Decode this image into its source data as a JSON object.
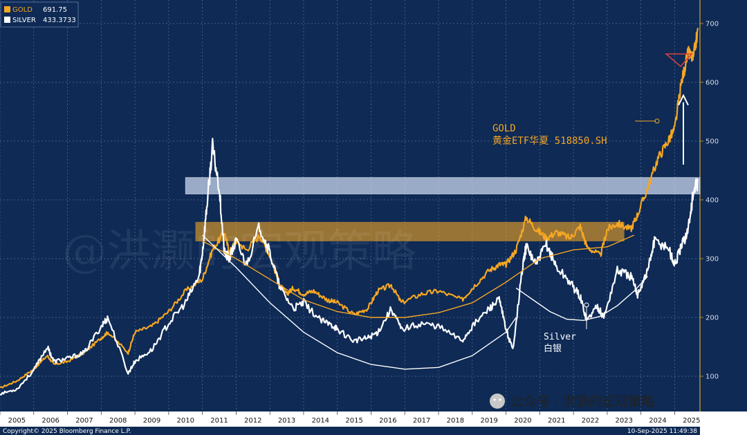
{
  "chart_data": {
    "type": "line",
    "legend": {
      "position": "top-left",
      "entries": [
        {
          "name": "GOLD",
          "value": "691.75",
          "color": "#f5a623"
        },
        {
          "name": "SILVER",
          "value": "433.3733",
          "color": "#ffffff"
        }
      ]
    },
    "x_ticks": [
      "2005",
      "2006",
      "2007",
      "2008",
      "2009",
      "2010",
      "2011",
      "2012",
      "2013",
      "2014",
      "2015",
      "2016",
      "2017",
      "2018",
      "2019",
      "2020",
      "2021",
      "2022",
      "2023",
      "2024",
      "2025"
    ],
    "xlim": [
      2005.0,
      2025.75
    ],
    "y_ticks": [
      100,
      200,
      300,
      400,
      500,
      600,
      700
    ],
    "ylim": [
      40,
      740
    ],
    "grid": true,
    "series": [
      {
        "name": "GOLD",
        "color": "#f5a623",
        "x": [
          2005.0,
          2005.5,
          2006.0,
          2006.4,
          2006.6,
          2007.0,
          2007.5,
          2008.0,
          2008.2,
          2008.8,
          2009.0,
          2009.5,
          2010.0,
          2010.5,
          2011.0,
          2011.3,
          2011.65,
          2011.8,
          2012.0,
          2012.3,
          2012.7,
          2013.0,
          2013.3,
          2013.5,
          2013.7,
          2014.0,
          2014.3,
          2014.7,
          2015.0,
          2015.5,
          2015.9,
          2016.2,
          2016.6,
          2016.9,
          2017.5,
          2018.0,
          2018.7,
          2019.0,
          2019.5,
          2019.8,
          2020.0,
          2020.3,
          2020.6,
          2020.9,
          2021.2,
          2021.5,
          2021.9,
          2022.2,
          2022.4,
          2022.8,
          2023.0,
          2023.3,
          2023.7,
          2023.9,
          2024.2,
          2024.5,
          2024.8,
          2025.0,
          2025.2,
          2025.4,
          2025.55,
          2025.7
        ],
        "y": [
          80,
          92,
          112,
          135,
          120,
          125,
          140,
          165,
          175,
          140,
          175,
          185,
          210,
          245,
          265,
          315,
          345,
          310,
          330,
          315,
          340,
          305,
          255,
          240,
          250,
          240,
          245,
          230,
          225,
          205,
          215,
          245,
          255,
          225,
          240,
          245,
          230,
          250,
          280,
          290,
          290,
          315,
          370,
          350,
          335,
          345,
          335,
          355,
          320,
          305,
          350,
          360,
          350,
          375,
          420,
          470,
          500,
          520,
          600,
          650,
          640,
          692
        ]
      },
      {
        "name": "SILVER",
        "color": "#ffffff",
        "x": [
          2005.0,
          2005.5,
          2006.0,
          2006.4,
          2006.6,
          2007.0,
          2007.5,
          2008.0,
          2008.2,
          2008.8,
          2009.0,
          2009.5,
          2010.0,
          2010.5,
          2010.9,
          2011.0,
          2011.15,
          2011.3,
          2011.5,
          2011.65,
          2011.8,
          2012.0,
          2012.3,
          2012.7,
          2013.0,
          2013.3,
          2013.7,
          2014.0,
          2014.5,
          2014.9,
          2015.0,
          2015.5,
          2015.9,
          2016.2,
          2016.6,
          2016.9,
          2017.5,
          2018.0,
          2018.7,
          2019.0,
          2019.5,
          2019.8,
          2020.0,
          2020.2,
          2020.5,
          2020.6,
          2020.9,
          2021.2,
          2021.5,
          2021.9,
          2022.2,
          2022.4,
          2022.7,
          2022.9,
          2023.3,
          2023.7,
          2023.9,
          2024.2,
          2024.4,
          2024.8,
          2025.0,
          2025.2,
          2025.4,
          2025.55,
          2025.7
        ],
        "y": [
          70,
          78,
          110,
          150,
          125,
          130,
          140,
          185,
          200,
          105,
          125,
          145,
          190,
          225,
          270,
          310,
          400,
          490,
          420,
          310,
          300,
          330,
          290,
          355,
          310,
          250,
          215,
          225,
          195,
          185,
          180,
          160,
          165,
          175,
          215,
          180,
          190,
          185,
          160,
          185,
          215,
          230,
          180,
          145,
          290,
          320,
          290,
          325,
          285,
          260,
          235,
          195,
          220,
          200,
          280,
          270,
          240,
          280,
          330,
          320,
          290,
          320,
          350,
          410,
          433
        ]
      },
      {
        "name": "GOLD_TREND_ARC",
        "color": "#f5a623",
        "x": [
          2011.0,
          2012.0,
          2013.0,
          2014.0,
          2015.0,
          2016.0,
          2017.0,
          2018.0,
          2019.0,
          2020.0,
          2021.0,
          2022.0,
          2023.0,
          2023.8
        ],
        "y": [
          330,
          300,
          265,
          230,
          210,
          200,
          200,
          208,
          225,
          260,
          300,
          315,
          320,
          340
        ]
      },
      {
        "name": "SILVER_TREND_ARC",
        "color": "#ffffff",
        "x": [
          2011.0,
          2012.0,
          2013.0,
          2014.0,
          2015.0,
          2016.0,
          2017.0,
          2018.0,
          2019.0,
          2020.0,
          2020.3
        ],
        "y": [
          340,
          285,
          225,
          175,
          140,
          120,
          112,
          115,
          135,
          175,
          200
        ]
      },
      {
        "name": "SILVER_TREND_ARC_2",
        "color": "#ffffff",
        "x": [
          2020.3,
          2020.8,
          2021.3,
          2021.8,
          2022.3,
          2022.8,
          2023.3,
          2023.8,
          2024.2
        ],
        "y": [
          250,
          230,
          210,
          197,
          195,
          202,
          220,
          245,
          270
        ]
      }
    ],
    "bands": [
      {
        "color": "#c9d6ee",
        "y": [
          410,
          438
        ],
        "x": [
          2010.5,
          2025.75
        ]
      },
      {
        "color": "#f5a623",
        "y": [
          330,
          362
        ],
        "x": [
          2010.8,
          2023.5
        ]
      }
    ],
    "annotations": {
      "gold_label_line1": "GOLD",
      "gold_label_line2": "黄金ETF华夏 518850.SH",
      "silver_label_line1": "Silver",
      "silver_label_line2": "白银"
    },
    "watermark": "@洪灏的宏观策略",
    "footer_copyright": "Copyright© 2025 Bloomberg Finance L.P.",
    "footer_timestamp": "10-Sep-2025 11:49:38",
    "wechat_label": "公众号 · 洪灏的宏观策略"
  },
  "colors": {
    "background": "#0e2a55",
    "grid": "#8aa0c8",
    "gold": "#f5a623",
    "silver": "#ffffff"
  }
}
